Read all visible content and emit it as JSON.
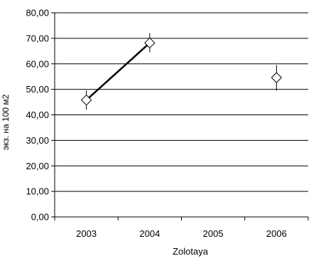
{
  "chart_data": {
    "type": "scatter",
    "title": "",
    "xlabel": "Zolotaya",
    "ylabel": "экз. на 100 м2",
    "categories": [
      "2003",
      "2004",
      "2005",
      "2006"
    ],
    "ylim": [
      0,
      80
    ],
    "y_ticks": [
      "0,00",
      "10,00",
      "20,00",
      "30,00",
      "40,00",
      "50,00",
      "60,00",
      "70,00",
      "80,00"
    ],
    "grid": "horizontal",
    "legend": "none",
    "series": [
      {
        "marker": "open-diamond",
        "points": [
          {
            "x": "2003",
            "y": 45.8,
            "err_low": 42.0,
            "err_high": 49.6
          },
          {
            "x": "2004",
            "y": 68.2,
            "err_low": 64.5,
            "err_high": 72.0
          },
          {
            "x": "2006",
            "y": 54.6,
            "err_low": 49.5,
            "err_high": 59.5
          }
        ],
        "line_segments": [
          [
            "2003",
            "2004"
          ]
        ]
      }
    ]
  }
}
